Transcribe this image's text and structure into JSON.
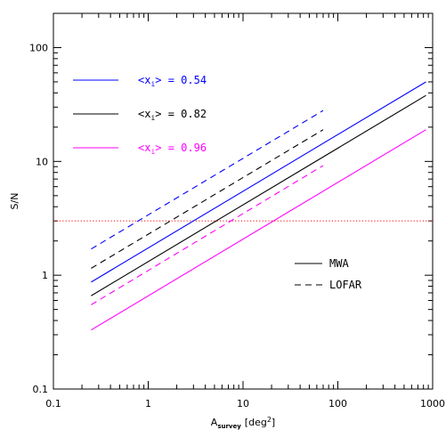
{
  "chart_data": {
    "type": "line",
    "xscale": "log",
    "yscale": "log",
    "xlim": [
      0.1,
      1000
    ],
    "ylim": [
      0.1,
      200
    ],
    "xlabel": {
      "main": "A",
      "sub": "survey",
      "unit": "[deg",
      "sup": "2",
      "close": "]"
    },
    "ylabel": "S/N",
    "xticks": [
      0.1,
      1,
      10,
      100,
      1000
    ],
    "xtick_labels": [
      "0.1",
      "1",
      "10",
      "100",
      "1000"
    ],
    "yticks": [
      0.1,
      1,
      10,
      100
    ],
    "ytick_labels": [
      "0.1",
      "1",
      "10",
      "100"
    ],
    "threshold": {
      "y": 3,
      "color": "#ff0000",
      "style": "dotted"
    },
    "series": [
      {
        "telescope": "MWA",
        "xi": "0.54",
        "color": "#0000ff",
        "style": "solid",
        "x": [
          0.25,
          850
        ],
        "y": [
          0.87,
          50
        ]
      },
      {
        "telescope": "MWA",
        "xi": "0.82",
        "color": "#000000",
        "style": "solid",
        "x": [
          0.25,
          850
        ],
        "y": [
          0.66,
          38
        ]
      },
      {
        "telescope": "MWA",
        "xi": "0.96",
        "color": "#ff00ff",
        "style": "solid",
        "x": [
          0.25,
          850
        ],
        "y": [
          0.33,
          19
        ]
      },
      {
        "telescope": "LOFAR",
        "xi": "0.54",
        "color": "#0000ff",
        "style": "dashed",
        "x": [
          0.25,
          70
        ],
        "y": [
          1.7,
          28
        ]
      },
      {
        "telescope": "LOFAR",
        "xi": "0.82",
        "color": "#000000",
        "style": "dashed",
        "x": [
          0.25,
          70
        ],
        "y": [
          1.15,
          19
        ]
      },
      {
        "telescope": "LOFAR",
        "xi": "0.96",
        "color": "#ff00ff",
        "style": "dashed",
        "x": [
          0.25,
          70
        ],
        "y": [
          0.55,
          9.2
        ]
      }
    ],
    "legend_xi": {
      "placement": "top-left",
      "entries": [
        {
          "prefix": "<x",
          "sub": "i",
          "value": "> = 0.54",
          "color": "#0000ff"
        },
        {
          "prefix": "<x",
          "sub": "i",
          "value": "> = 0.82",
          "color": "#000000"
        },
        {
          "prefix": "<x",
          "sub": "i",
          "value": "> = 0.96",
          "color": "#ff00ff"
        }
      ]
    },
    "legend_style": {
      "placement": "center-right",
      "entries": [
        {
          "label": "MWA",
          "style": "solid"
        },
        {
          "label": "LOFAR",
          "style": "dashed"
        }
      ]
    }
  }
}
